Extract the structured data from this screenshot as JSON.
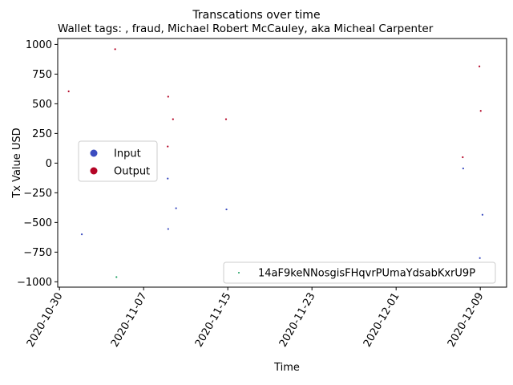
{
  "chart_data": {
    "type": "scatter",
    "title": "Transcations over time",
    "subtitle": "Wallet tags: , fraud, Michael Robert McCauley, aka Micheal Carpenter",
    "xlabel": "Time",
    "ylabel": "Tx Value USD",
    "x_ticks": [
      "2020-10-30",
      "2020-11-07",
      "2020-11-15",
      "2020-11-23",
      "2020-12-01",
      "2020-12-09"
    ],
    "y_ticks": [
      "1000",
      "750",
      "500",
      "250",
      "0",
      "−250",
      "−500",
      "−750",
      "−1000"
    ],
    "xlim": [
      "2020-10-29T20:00",
      "2020-12-11T12:00"
    ],
    "ylim": [
      -1045,
      1050
    ],
    "legend_top": {
      "placement": "center-left",
      "entries": [
        {
          "label": "Input",
          "color": "#3b4cc0"
        },
        {
          "label": "Output",
          "color": "#b40426"
        }
      ]
    },
    "legend_bottom": {
      "placement": "lower-right",
      "label": "14aF9keNNosgisFHqvrPUmaYdsabKxrU9P",
      "color": "#1a9e60"
    },
    "series": [
      {
        "name": "Input",
        "color": "#3b4cc0",
        "points": [
          {
            "x": "2020-11-01T03:00",
            "y": -600
          },
          {
            "x": "2020-11-09T07:00",
            "y": -130
          },
          {
            "x": "2020-11-09T08:00",
            "y": -555
          },
          {
            "x": "2020-11-10T02:00",
            "y": -380
          },
          {
            "x": "2020-11-14T21:00",
            "y": -390
          },
          {
            "x": "2020-12-07T09:00",
            "y": -45
          },
          {
            "x": "2020-12-08T23:00",
            "y": -800
          },
          {
            "x": "2020-12-09T05:00",
            "y": -435
          }
        ]
      },
      {
        "name": "Output",
        "color": "#b40426",
        "points": [
          {
            "x": "2020-10-30T21:00",
            "y": 605
          },
          {
            "x": "2020-11-04T07:00",
            "y": 960
          },
          {
            "x": "2020-11-09T07:00",
            "y": 140
          },
          {
            "x": "2020-11-09T08:00",
            "y": 560
          },
          {
            "x": "2020-11-09T19:00",
            "y": 370
          },
          {
            "x": "2020-11-14T20:00",
            "y": 370
          },
          {
            "x": "2020-12-07T08:00",
            "y": 50
          },
          {
            "x": "2020-12-08T22:00",
            "y": 815
          },
          {
            "x": "2020-12-09T01:00",
            "y": 440
          }
        ]
      },
      {
        "name": "14aF9keNNosgisFHqvrPUmaYdsabKxrU9P",
        "color": "#1a9e60",
        "points": [
          {
            "x": "2020-11-04T10:00",
            "y": -960
          }
        ]
      }
    ]
  }
}
